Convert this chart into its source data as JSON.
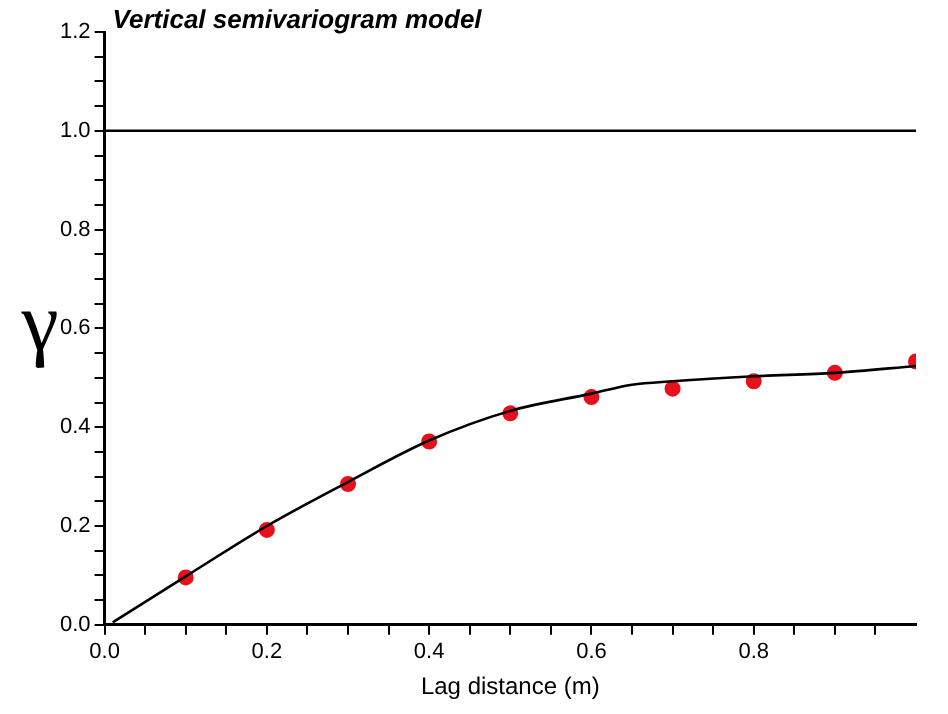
{
  "chart_data": {
    "type": "scatter",
    "title": "Vertical semivariogram model",
    "xlabel": "Lag distance (m)",
    "ylabel": "γ",
    "xlim": [
      0,
      1
    ],
    "ylim": [
      0,
      1.2
    ],
    "xticks": [
      {
        "value": 0,
        "label": "0.0"
      },
      {
        "value": 0.05,
        "label": null
      },
      0.2,
      {
        "value": 0.1,
        "label": null
      },
      {
        "value": 0.15,
        "label": null
      },
      {
        "value": 0.25,
        "label": null
      },
      {
        "value": 0.3,
        "label": null
      },
      {
        "value": 0.35,
        "label": null
      },
      0.4,
      {
        "value": 0.45,
        "label": null
      },
      {
        "value": 0.5,
        "label": null
      },
      {
        "value": 0.55,
        "label": null
      },
      0.6,
      {
        "value": 0.65,
        "label": null
      },
      {
        "value": 0.7,
        "label": null
      },
      {
        "value": 0.75,
        "label": null
      },
      0.8,
      {
        "value": 0.85,
        "label": null
      },
      {
        "value": 0.9,
        "label": null
      },
      {
        "value": 0.95,
        "label": null
      }
    ],
    "yticks": [
      {
        "value": 0,
        "label": "0.0"
      },
      {
        "value": 0.05,
        "label": null
      },
      {
        "value": 0.1,
        "label": null
      },
      {
        "value": 0.15,
        "label": null
      },
      0.2,
      {
        "value": 0.25,
        "label": null
      },
      {
        "value": 0.3,
        "label": null
      },
      {
        "value": 0.35,
        "label": null
      },
      0.4,
      {
        "value": 0.45,
        "label": null
      },
      {
        "value": 0.5,
        "label": null
      },
      {
        "value": 0.55,
        "label": null
      },
      0.6,
      {
        "value": 0.65,
        "label": null
      },
      {
        "value": 0.7,
        "label": null
      },
      {
        "value": 0.75,
        "label": null
      },
      0.8,
      {
        "value": 0.85,
        "label": null
      },
      {
        "value": 0.9,
        "label": null
      },
      {
        "value": 0.95,
        "label": null
      },
      {
        "value": 1,
        "label": "1.0"
      },
      {
        "value": 1.05,
        "label": null
      },
      {
        "value": 1.1,
        "label": null
      },
      {
        "value": 1.15,
        "label": null
      },
      1.2
    ],
    "grid": false,
    "legend": false,
    "marker": "circle",
    "ref_lines": [
      {
        "axis": "y",
        "value": 1,
        "color": "#000000"
      }
    ],
    "series": [
      {
        "type": "scatter",
        "color": "#e8101a",
        "x": [
          0.1,
          0.2,
          0.3,
          0.4,
          0.5,
          0.6,
          0.7,
          0.8,
          0.9,
          1.0
        ],
        "values": [
          0.096,
          0.192,
          0.285,
          0.371,
          0.428,
          0.461,
          0.478,
          0.493,
          0.51,
          0.533
        ]
      },
      {
        "type": "line",
        "color": "#000000",
        "marker": "none",
        "x": [
          0.01,
          0.1,
          0.2,
          0.3,
          0.4,
          0.5,
          0.6,
          0.65,
          0.7,
          0.8,
          0.9,
          1.0
        ],
        "values": [
          0.005,
          0.098,
          0.2,
          0.289,
          0.373,
          0.433,
          0.468,
          0.486,
          0.493,
          0.503,
          0.51,
          0.524
        ]
      }
    ]
  }
}
